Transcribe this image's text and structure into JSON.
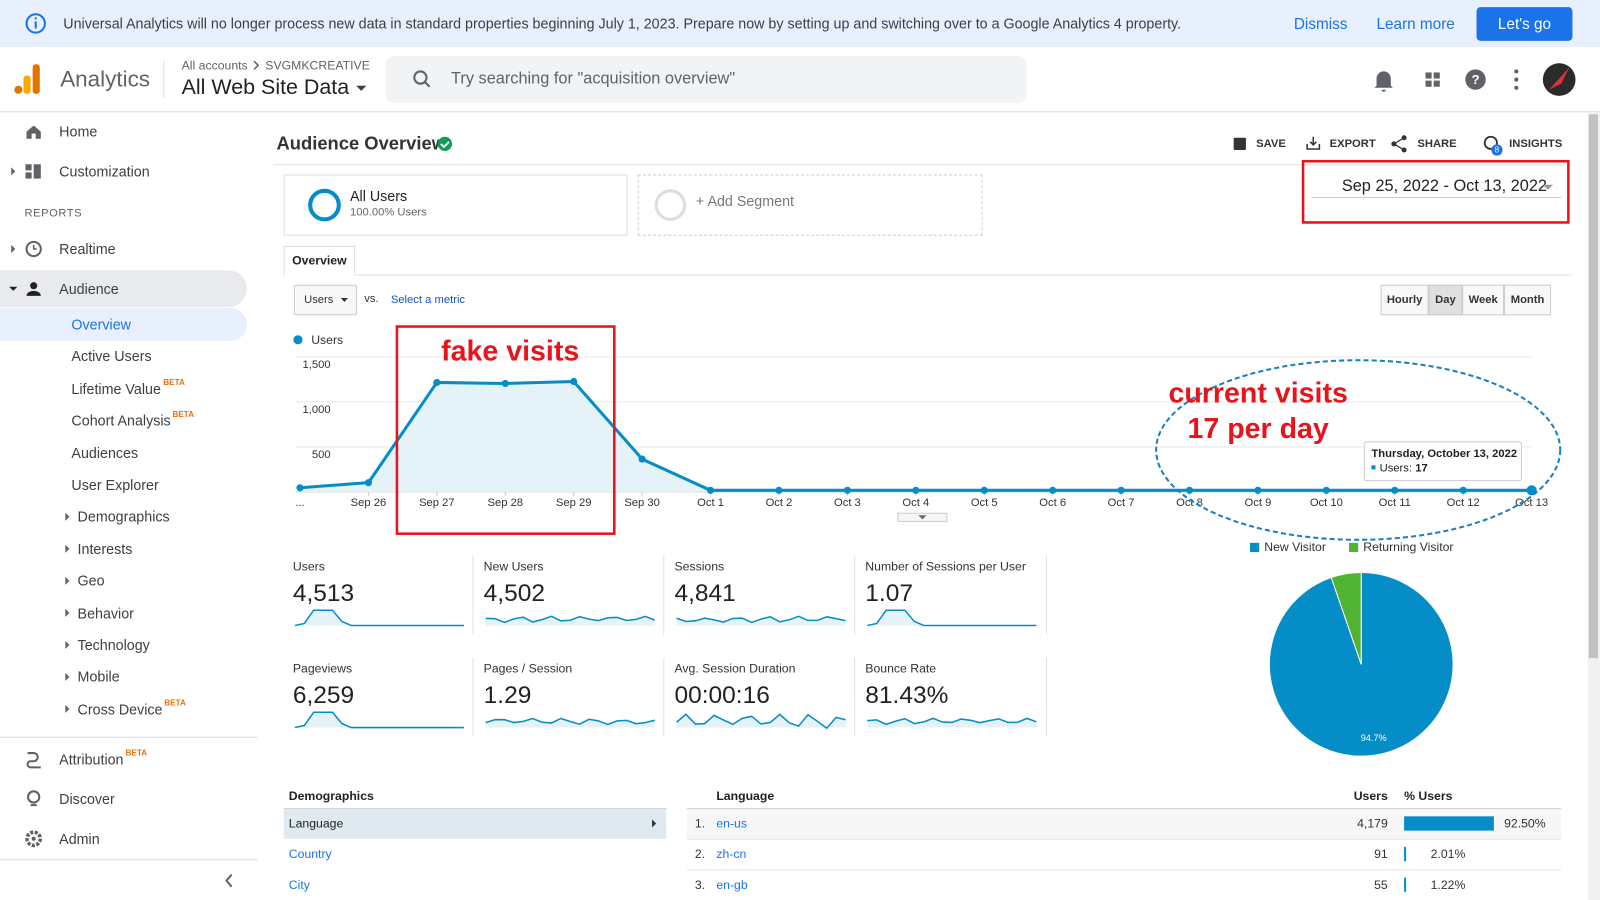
{
  "banner": {
    "message": "Universal Analytics will no longer process new data in standard properties beginning July 1, 2023. Prepare now by setting up and switching over to a Google Analytics 4 property.",
    "dismiss": "Dismiss",
    "learn_more": "Learn more",
    "cta": "Let's go"
  },
  "header": {
    "product": "Analytics",
    "account_root": "All accounts",
    "account": "SVGMKCREATIVE",
    "view": "All Web Site Data",
    "search_placeholder": "Try searching for \"acquisition overview\""
  },
  "sidebar": {
    "top": [
      {
        "label": "Home"
      },
      {
        "label": "Customization"
      }
    ],
    "section": "REPORTS",
    "reports": [
      {
        "label": "Realtime"
      },
      {
        "label": "Audience",
        "children": [
          {
            "label": "Overview"
          },
          {
            "label": "Active Users"
          },
          {
            "label": "Lifetime Value",
            "beta": "BETA"
          },
          {
            "label": "Cohort Analysis",
            "beta": "BETA"
          },
          {
            "label": "Audiences"
          },
          {
            "label": "User Explorer"
          },
          {
            "label": "Demographics"
          },
          {
            "label": "Interests"
          },
          {
            "label": "Geo"
          },
          {
            "label": "Behavior"
          },
          {
            "label": "Technology"
          },
          {
            "label": "Mobile"
          },
          {
            "label": "Cross Device",
            "beta": "BETA"
          }
        ]
      }
    ],
    "bottom": [
      {
        "label": "Attribution",
        "beta": "BETA"
      },
      {
        "label": "Discover"
      },
      {
        "label": "Admin"
      }
    ]
  },
  "report": {
    "title": "Audience Overview",
    "actions": [
      "SAVE",
      "EXPORT",
      "SHARE",
      "INSIGHTS"
    ],
    "insights_badge": "8",
    "segment": {
      "name": "All Users",
      "share": "100.00% Users"
    },
    "add_segment": "+ Add Segment",
    "date_range": "Sep 25, 2022 - Oct 13, 2022",
    "tab": "Overview",
    "metric": "Users",
    "vs": "vs.",
    "select_metric": "Select a metric",
    "granularity": [
      "Hourly",
      "Day",
      "Week",
      "Month"
    ],
    "active_granularity": "Day"
  },
  "chart_data": [
    {
      "type": "line",
      "categories": [
        "...",
        "Sep 26",
        "Sep 27",
        "Sep 28",
        "Sep 29",
        "Sep 30",
        "Oct 1",
        "Oct 2",
        "Oct 3",
        "Oct 4",
        "Oct 5",
        "Oct 6",
        "Oct 7",
        "Oct 8",
        "Oct 9",
        "Oct 10",
        "Oct 11",
        "Oct 12",
        "Oct 13"
      ],
      "series": [
        {
          "name": "Users",
          "color": "#058dc7",
          "values": [
            45,
            102,
            1216,
            1205,
            1227,
            364,
            17,
            17,
            17,
            17,
            17,
            17,
            17,
            17,
            17,
            17,
            17,
            17,
            17
          ]
        }
      ],
      "ylim": [
        0,
        1600
      ],
      "yticks": [
        500,
        {
          "value": 1000,
          "label": "1,000"
        },
        {
          "value": 1500,
          "label": "1,500"
        }
      ],
      "grid": true,
      "annotations": [
        "fake visits",
        "current visits",
        "17 per day"
      ],
      "tooltip": {
        "title": "Thursday, October 13, 2022",
        "label": "Users:",
        "value": 17
      }
    },
    {
      "type": "pie",
      "categories": [
        "New Visitor",
        "Returning Visitor"
      ],
      "values": [
        94.7,
        5.3
      ],
      "colors": [
        "#058dc7",
        "#50b432"
      ],
      "value_labels": [
        "94.7%",
        null
      ]
    }
  ],
  "scorecards": [
    {
      "label": "Users",
      "value": "4,513"
    },
    {
      "label": "New Users",
      "value": "4,502"
    },
    {
      "label": "Sessions",
      "value": "4,841"
    },
    {
      "label": "Number of Sessions per User",
      "value": "1.07"
    },
    {
      "label": "Pageviews",
      "value": "6,259"
    },
    {
      "label": "Pages / Session",
      "value": "1.29"
    },
    {
      "label": "Avg. Session Duration",
      "value": "00:00:16"
    },
    {
      "label": "Bounce Rate",
      "value": "81.43%"
    }
  ],
  "demographics": {
    "title": "Demographics",
    "items": [
      "Language",
      "Country",
      "City"
    ],
    "selected": "Language"
  },
  "language_table": {
    "headers": [
      "Language",
      "Users",
      "% Users"
    ],
    "rows": [
      {
        "rank": "1.",
        "language": "en-us",
        "users": "4,179",
        "share": {
          "value": 92.5,
          "label": "92.50%"
        }
      },
      {
        "rank": "2.",
        "language": "zh-cn",
        "users": "91",
        "share": {
          "value": 2.01,
          "label": "2.01%"
        }
      },
      {
        "rank": "3.",
        "language": "en-gb",
        "users": "55",
        "share": {
          "value": 1.22,
          "label": "1.22%"
        }
      }
    ]
  }
}
